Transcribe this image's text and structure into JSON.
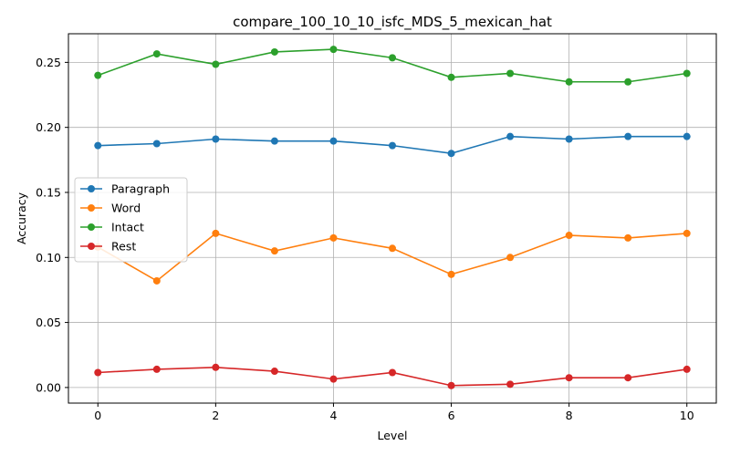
{
  "chart_data": {
    "type": "line",
    "title": "compare_100_10_10_isfc_MDS_5_mexican_hat",
    "xlabel": "Level",
    "ylabel": "Accuracy",
    "xlim": [
      -0.5,
      10.5
    ],
    "ylim": [
      -0.012,
      0.272
    ],
    "xticks": [
      0,
      2,
      4,
      6,
      8,
      10
    ],
    "yticks": [
      0.0,
      0.05,
      0.1,
      0.15,
      0.2,
      0.25
    ],
    "ytick_labels": [
      "0.00",
      "0.05",
      "0.10",
      "0.15",
      "0.20",
      "0.25"
    ],
    "grid": true,
    "legend_position": "center-left",
    "x": [
      0,
      1,
      2,
      3,
      4,
      5,
      6,
      7,
      8,
      9,
      10
    ],
    "series": [
      {
        "name": "Paragraph",
        "color": "#1f77b4",
        "values": [
          0.186,
          0.1875,
          0.191,
          0.1895,
          0.1895,
          0.186,
          0.18,
          0.193,
          0.191,
          0.193,
          0.193
        ]
      },
      {
        "name": "Word",
        "color": "#ff7f0e",
        "values": [
          0.108,
          0.082,
          0.1185,
          0.105,
          0.115,
          0.107,
          0.087,
          0.1,
          0.117,
          0.115,
          0.1185
        ]
      },
      {
        "name": "Intact",
        "color": "#2ca02c",
        "values": [
          0.24,
          0.2565,
          0.2485,
          0.258,
          0.26,
          0.2535,
          0.2385,
          0.2415,
          0.235,
          0.235,
          0.2415
        ]
      },
      {
        "name": "Rest",
        "color": "#d62728",
        "values": [
          0.0115,
          0.014,
          0.0155,
          0.0125,
          0.0065,
          0.0115,
          0.0015,
          0.0025,
          0.0075,
          0.0075,
          0.014
        ]
      }
    ]
  }
}
